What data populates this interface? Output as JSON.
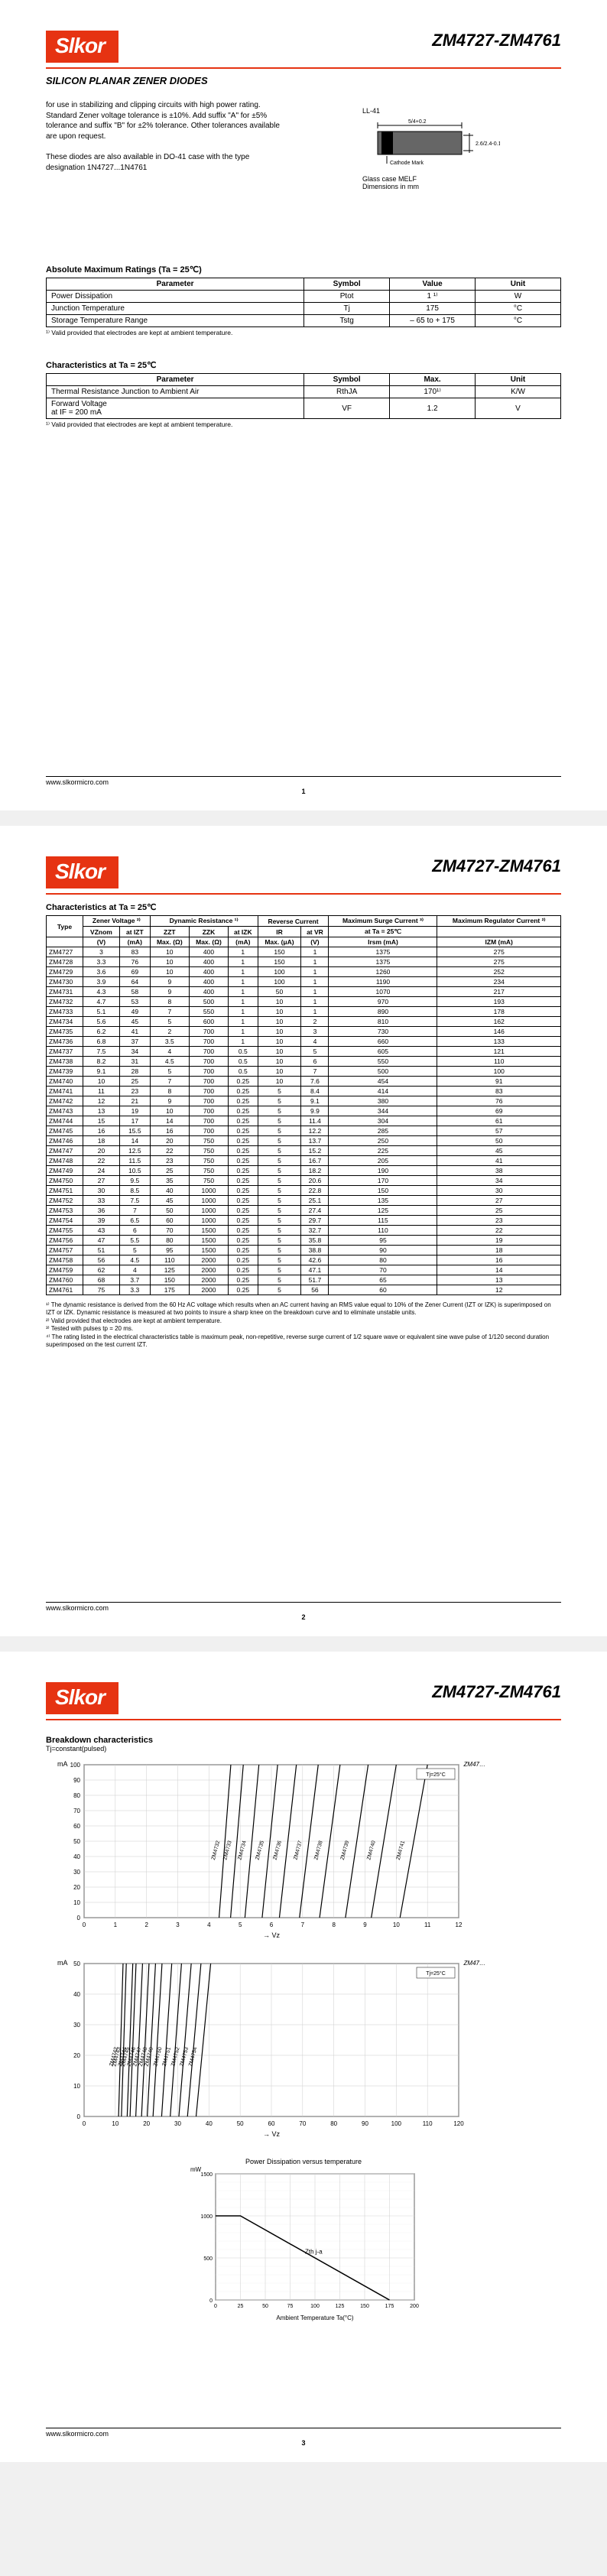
{
  "brand": "Slkor",
  "part_range": "ZM4727-ZM4761",
  "subtitle": "SILICON PLANAR ZENER DIODES",
  "intro1": "for use in stabilizing and clipping circuits with high power rating. Standard Zener voltage tolerance is ±10%. Add suffix \"A\" for ±5% tolerance and suffix \"B\" for ±2% tolerance. Other tolerances available are upon request.",
  "intro2": "These diodes are also available in DO-41 case with the type designation 1N4727...1N4761",
  "pkg_label": "LL-41",
  "pkg_dim_len": "5/4+0.2",
  "pkg_dim_dia": "2.6/2.4-0.1",
  "pkg_cathode": "Cathode Mark",
  "pkg_caption": "Glass case MELF\nDimensions in mm",
  "abs_max_title": "Absolute Maximum Ratings (Ta = 25℃)",
  "abs_max_headers": [
    "Parameter",
    "Symbol",
    "Value",
    "Unit"
  ],
  "abs_max_rows": [
    [
      "Power Dissipation",
      "Ptot",
      "1 ¹⁾",
      "W"
    ],
    [
      "Junction Temperature",
      "Tj",
      "175",
      "°C"
    ],
    [
      "Storage Temperature Range",
      "Tstg",
      "– 65 to + 175",
      "°C"
    ]
  ],
  "abs_max_note": "¹⁾ Valid provided that electrodes are kept at ambient temperature.",
  "char_title": "Characteristics at Ta = 25℃",
  "char_headers": [
    "Parameter",
    "Symbol",
    "Max.",
    "Unit"
  ],
  "char_rows": [
    [
      "Thermal Resistance Junction to Ambient Air",
      "RthJA",
      "170¹⁾",
      "K/W"
    ],
    [
      "Forward Voltage\n  at IF = 200 mA",
      "VF",
      "1.2",
      "V"
    ]
  ],
  "char_note": "¹⁾ Valid provided that electrodes are kept at ambient temperature.",
  "footer_url": "www.slkormicro.com",
  "elec_title": "Characteristics at Ta = 25℃",
  "elec_group_headers": [
    "Type",
    "Zener Voltage ²⁾",
    "Dynamic Resistance ¹⁾",
    "Reverse Current",
    "Maximum Surge Current ³⁾",
    "Maximum Regulator Current ²⁾"
  ],
  "elec_sub_headers": [
    "",
    "VZnom",
    "at IZT",
    "ZZT",
    "ZZK",
    "at IZK",
    "IR",
    "at VR",
    "at Ta = 25℃",
    ""
  ],
  "elec_unit_headers": [
    "",
    "(V)",
    "(mA)",
    "Max. (Ω)",
    "Max. (Ω)",
    "(mA)",
    "Max. (μA)",
    "(V)",
    "Irsm (mA)",
    "IZM (mA)"
  ],
  "elec_rows": [
    [
      "ZM4727",
      "3",
      "83",
      "10",
      "400",
      "1",
      "150",
      "1",
      "1375",
      "275"
    ],
    [
      "ZM4728",
      "3.3",
      "76",
      "10",
      "400",
      "1",
      "150",
      "1",
      "1375",
      "275"
    ],
    [
      "ZM4729",
      "3.6",
      "69",
      "10",
      "400",
      "1",
      "100",
      "1",
      "1260",
      "252"
    ],
    [
      "ZM4730",
      "3.9",
      "64",
      "9",
      "400",
      "1",
      "100",
      "1",
      "1190",
      "234"
    ],
    [
      "ZM4731",
      "4.3",
      "58",
      "9",
      "400",
      "1",
      "50",
      "1",
      "1070",
      "217"
    ],
    [
      "ZM4732",
      "4.7",
      "53",
      "8",
      "500",
      "1",
      "10",
      "1",
      "970",
      "193"
    ],
    [
      "ZM4733",
      "5.1",
      "49",
      "7",
      "550",
      "1",
      "10",
      "1",
      "890",
      "178"
    ],
    [
      "ZM4734",
      "5.6",
      "45",
      "5",
      "600",
      "1",
      "10",
      "2",
      "810",
      "162"
    ],
    [
      "ZM4735",
      "6.2",
      "41",
      "2",
      "700",
      "1",
      "10",
      "3",
      "730",
      "146"
    ],
    [
      "ZM4736",
      "6.8",
      "37",
      "3.5",
      "700",
      "1",
      "10",
      "4",
      "660",
      "133"
    ],
    [
      "ZM4737",
      "7.5",
      "34",
      "4",
      "700",
      "0.5",
      "10",
      "5",
      "605",
      "121"
    ],
    [
      "ZM4738",
      "8.2",
      "31",
      "4.5",
      "700",
      "0.5",
      "10",
      "6",
      "550",
      "110"
    ],
    [
      "ZM4739",
      "9.1",
      "28",
      "5",
      "700",
      "0.5",
      "10",
      "7",
      "500",
      "100"
    ],
    [
      "ZM4740",
      "10",
      "25",
      "7",
      "700",
      "0.25",
      "10",
      "7.6",
      "454",
      "91"
    ],
    [
      "ZM4741",
      "11",
      "23",
      "8",
      "700",
      "0.25",
      "5",
      "8.4",
      "414",
      "83"
    ],
    [
      "ZM4742",
      "12",
      "21",
      "9",
      "700",
      "0.25",
      "5",
      "9.1",
      "380",
      "76"
    ],
    [
      "ZM4743",
      "13",
      "19",
      "10",
      "700",
      "0.25",
      "5",
      "9.9",
      "344",
      "69"
    ],
    [
      "ZM4744",
      "15",
      "17",
      "14",
      "700",
      "0.25",
      "5",
      "11.4",
      "304",
      "61"
    ],
    [
      "ZM4745",
      "16",
      "15.5",
      "16",
      "700",
      "0.25",
      "5",
      "12.2",
      "285",
      "57"
    ],
    [
      "ZM4746",
      "18",
      "14",
      "20",
      "750",
      "0.25",
      "5",
      "13.7",
      "250",
      "50"
    ],
    [
      "ZM4747",
      "20",
      "12.5",
      "22",
      "750",
      "0.25",
      "5",
      "15.2",
      "225",
      "45"
    ],
    [
      "ZM4748",
      "22",
      "11.5",
      "23",
      "750",
      "0.25",
      "5",
      "16.7",
      "205",
      "41"
    ],
    [
      "ZM4749",
      "24",
      "10.5",
      "25",
      "750",
      "0.25",
      "5",
      "18.2",
      "190",
      "38"
    ],
    [
      "ZM4750",
      "27",
      "9.5",
      "35",
      "750",
      "0.25",
      "5",
      "20.6",
      "170",
      "34"
    ],
    [
      "ZM4751",
      "30",
      "8.5",
      "40",
      "1000",
      "0.25",
      "5",
      "22.8",
      "150",
      "30"
    ],
    [
      "ZM4752",
      "33",
      "7.5",
      "45",
      "1000",
      "0.25",
      "5",
      "25.1",
      "135",
      "27"
    ],
    [
      "ZM4753",
      "36",
      "7",
      "50",
      "1000",
      "0.25",
      "5",
      "27.4",
      "125",
      "25"
    ],
    [
      "ZM4754",
      "39",
      "6.5",
      "60",
      "1000",
      "0.25",
      "5",
      "29.7",
      "115",
      "23"
    ],
    [
      "ZM4755",
      "43",
      "6",
      "70",
      "1500",
      "0.25",
      "5",
      "32.7",
      "110",
      "22"
    ],
    [
      "ZM4756",
      "47",
      "5.5",
      "80",
      "1500",
      "0.25",
      "5",
      "35.8",
      "95",
      "19"
    ],
    [
      "ZM4757",
      "51",
      "5",
      "95",
      "1500",
      "0.25",
      "5",
      "38.8",
      "90",
      "18"
    ],
    [
      "ZM4758",
      "56",
      "4.5",
      "110",
      "2000",
      "0.25",
      "5",
      "42.6",
      "80",
      "16"
    ],
    [
      "ZM4759",
      "62",
      "4",
      "125",
      "2000",
      "0.25",
      "5",
      "47.1",
      "70",
      "14"
    ],
    [
      "ZM4760",
      "68",
      "3.7",
      "150",
      "2000",
      "0.25",
      "5",
      "51.7",
      "65",
      "13"
    ],
    [
      "ZM4761",
      "75",
      "3.3",
      "175",
      "2000",
      "0.25",
      "5",
      "56",
      "60",
      "12"
    ]
  ],
  "elec_notes": [
    "¹⁾ The dynamic resistance is derived from the 60 Hz AC voltage which results when an AC current having an RMS value equal to 10% of the Zener Current (IZT or IZK) is superimposed on IZT or IZK. Dynamic resistance is measured at two points to insure a sharp knee on the breakdown curve and to eliminate unstable units.",
    "²⁾ Valid provided that electrodes are kept at ambient temperature.",
    "³⁾ Tested with pulses tp = 20 ms.",
    "⁴⁾ The rating listed in the electrical characteristics table is maximum peak, non-repetitive, reverse surge current of 1/2 square wave or equivalent sine wave pulse of 1/120 second duration superimposed on the test current IZT."
  ],
  "chart_title": "Breakdown characteristics",
  "chart_sub": "Tj=constant(pulsed)",
  "chart1_ylabel": "mA",
  "chart1_ymax": 100,
  "chart1_ytick": 10,
  "chart1_xmax": 12,
  "chart1_xlabel": "Vz",
  "chart1_note_right": "ZM47…",
  "chart1_temp_note": "Tj=25°C",
  "chart1_curves": [
    "ZM4732",
    "ZM4733",
    "ZM4734",
    "ZM4735",
    "ZM4736",
    "ZM4737",
    "ZM4738",
    "ZM4739",
    "ZM4740",
    "ZM4741"
  ],
  "chart2_xmax": 120,
  "chart2_xtick": 10,
  "chart2_curves": [
    "ZM4742",
    "ZM4743",
    "ZM4744",
    "ZM4745",
    "ZM4746",
    "ZM4747",
    "ZM4748",
    "ZM4749",
    "ZM4750",
    "ZM4751",
    "ZM4752",
    "ZM4753",
    "ZM4754"
  ],
  "chart3_title": "Power Dissipation versus temperature",
  "chart3_ylabel": "mW",
  "chart3_ymax": 1500,
  "chart3_xmax": 200,
  "chart3_xlabel": "Ambient Temperature Ta(°C)",
  "chart3_annot": "Zth j-a",
  "chart3_line_colors": {
    "curve": "#000",
    "grid": "#aaa"
  }
}
